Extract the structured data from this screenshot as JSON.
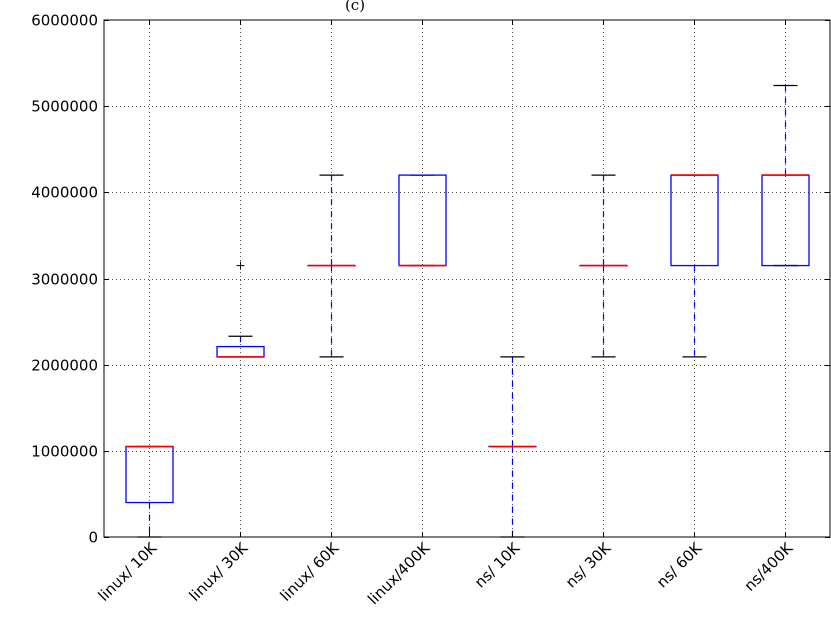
{
  "title_fragment": "(c)",
  "chart_data": {
    "type": "box",
    "title": "",
    "xlabel": "",
    "ylabel": "",
    "ylim": [
      0,
      6000000
    ],
    "yticks": [
      0,
      1000000,
      2000000,
      3000000,
      4000000,
      5000000,
      6000000
    ],
    "ytick_labels": [
      "0",
      "1000000",
      "2000000",
      "3000000",
      "4000000",
      "5000000",
      "6000000"
    ],
    "grid": true,
    "categories": [
      "linux/ 10K",
      "linux/ 30K",
      "linux/ 60K",
      "linux/400K",
      "ns/ 10K",
      "ns/ 30K",
      "ns/ 60K",
      "ns/400K"
    ],
    "boxes": [
      {
        "whisker_low": 0,
        "q1": 400000,
        "median": 1050000,
        "q3": 1050000,
        "whisker_high": 1050000,
        "fliers": []
      },
      {
        "whisker_low": 2090000,
        "q1": 2090000,
        "median": 2090000,
        "q3": 2210000,
        "whisker_high": 2330000,
        "fliers": [
          3150000
        ]
      },
      {
        "whisker_low": 2090000,
        "q1": 3150000,
        "median": 3150000,
        "q3": 3150000,
        "whisker_high": 4200000,
        "fliers": []
      },
      {
        "whisker_low": 3150000,
        "q1": 3150000,
        "median": 3150000,
        "q3": 4200000,
        "whisker_high": 4200000,
        "fliers": []
      },
      {
        "whisker_low": 0,
        "q1": 1050000,
        "median": 1050000,
        "q3": 1050000,
        "whisker_high": 2090000,
        "fliers": []
      },
      {
        "whisker_low": 2090000,
        "q1": 3150000,
        "median": 3150000,
        "q3": 3150000,
        "whisker_high": 4200000,
        "fliers": []
      },
      {
        "whisker_low": 2090000,
        "q1": 3150000,
        "median": 4200000,
        "q3": 4200000,
        "whisker_high": 4200000,
        "fliers": []
      },
      {
        "whisker_low": 3150000,
        "q1": 3150000,
        "median": 4200000,
        "q3": 4200000,
        "whisker_high": 5240000,
        "fliers": []
      }
    ],
    "colors": {
      "box": "#0000ff",
      "median": "#ff0000",
      "whisker": "#0000ff",
      "cap": "#000000",
      "flier": "#000000",
      "grid": "#555555"
    }
  }
}
